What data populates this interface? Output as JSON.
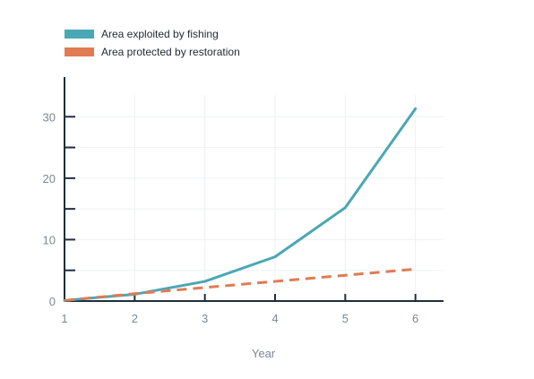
{
  "chart_data": {
    "type": "line",
    "title": "",
    "xlabel": "Year",
    "ylabel": "",
    "x": [
      1,
      2,
      3,
      4,
      5,
      6
    ],
    "xlim": [
      1,
      6.4
    ],
    "ylim": [
      0,
      35
    ],
    "xticks": [
      1,
      2,
      3,
      4,
      5,
      6
    ],
    "yticks": [
      0,
      10,
      20,
      30
    ],
    "y_minor_ticks": [
      5,
      15,
      25
    ],
    "grid": true,
    "legend_position": "top-left",
    "series": [
      {
        "name": "Area exploited by fishing",
        "color": "#4aa7b4",
        "dash": "solid",
        "values": [
          0.1,
          1.1,
          3.2,
          7.2,
          15.2,
          31.3
        ]
      },
      {
        "name": "Area protected by restoration",
        "color": "#e07b53",
        "dash": "dashed",
        "values": [
          0.1,
          1.2,
          2.2,
          3.2,
          4.2,
          5.2
        ]
      }
    ]
  }
}
